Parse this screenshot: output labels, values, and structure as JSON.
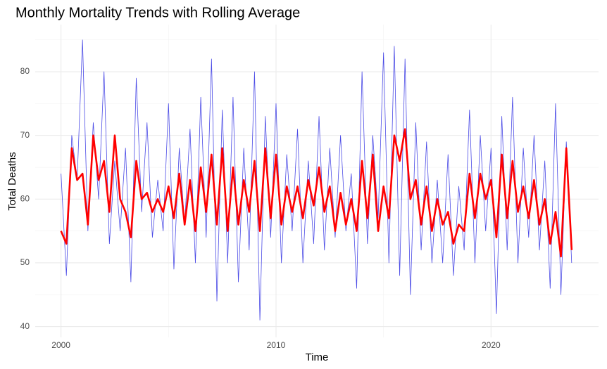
{
  "chart_data": {
    "type": "line",
    "title": "Monthly Mortality Trends with Rolling Average",
    "xlabel": "Time",
    "ylabel": "Total Deaths",
    "x": [
      2000,
      2000.25,
      2000.5,
      2000.75,
      2001,
      2001.25,
      2001.5,
      2001.75,
      2002,
      2002.25,
      2002.5,
      2002.75,
      2003,
      2003.25,
      2003.5,
      2003.75,
      2004,
      2004.25,
      2004.5,
      2004.75,
      2005,
      2005.25,
      2005.5,
      2005.75,
      2006,
      2006.25,
      2006.5,
      2006.75,
      2007,
      2007.25,
      2007.5,
      2007.75,
      2008,
      2008.25,
      2008.5,
      2008.75,
      2009,
      2009.25,
      2009.5,
      2009.75,
      2010,
      2010.25,
      2010.5,
      2010.75,
      2011,
      2011.25,
      2011.5,
      2011.75,
      2012,
      2012.25,
      2012.5,
      2012.75,
      2013,
      2013.25,
      2013.5,
      2013.75,
      2014,
      2014.25,
      2014.5,
      2014.75,
      2015,
      2015.25,
      2015.5,
      2015.75,
      2016,
      2016.25,
      2016.5,
      2016.75,
      2017,
      2017.25,
      2017.5,
      2017.75,
      2018,
      2018.25,
      2018.5,
      2018.75,
      2019,
      2019.25,
      2019.5,
      2019.75,
      2020,
      2020.25,
      2020.5,
      2020.75,
      2021,
      2021.25,
      2021.5,
      2021.75,
      2022,
      2022.25,
      2022.5,
      2022.75,
      2023,
      2023.25,
      2023.5,
      2023.75
    ],
    "series": [
      {
        "color": "#4a4ae6",
        "width": 0.8,
        "values": [
          64,
          48,
          70,
          63,
          85,
          55,
          72,
          60,
          80,
          53,
          66,
          55,
          68,
          47,
          79,
          58,
          72,
          54,
          63,
          55,
          75,
          49,
          68,
          56,
          71,
          50,
          76,
          54,
          82,
          44,
          74,
          50,
          76,
          47,
          68,
          52,
          80,
          41,
          73,
          54,
          75,
          50,
          67,
          55,
          71,
          50,
          66,
          53,
          73,
          52,
          68,
          54,
          70,
          55,
          64,
          46,
          80,
          53,
          70,
          57,
          83,
          50,
          84,
          48,
          82,
          45,
          72,
          52,
          69,
          50,
          63,
          50,
          67,
          48,
          62,
          52,
          74,
          50,
          70,
          55,
          68,
          42,
          73,
          52,
          76,
          50,
          68,
          54,
          70,
          52,
          66,
          46,
          75,
          45,
          69,
          50
        ]
      },
      {
        "color": "#ff0000",
        "width": 2.6,
        "values": [
          55,
          53,
          68,
          63,
          64,
          56,
          70,
          63,
          66,
          58,
          70,
          60,
          58,
          54,
          66,
          60,
          61,
          58,
          60,
          58,
          62,
          57,
          64,
          56,
          63,
          55,
          65,
          58,
          67,
          56,
          68,
          55,
          65,
          56,
          63,
          58,
          66,
          55,
          68,
          57,
          67,
          56,
          62,
          58,
          62,
          57,
          63,
          59,
          65,
          58,
          62,
          55,
          61,
          56,
          60,
          55,
          66,
          57,
          67,
          55,
          62,
          57,
          70,
          66,
          71,
          60,
          63,
          56,
          62,
          55,
          60,
          56,
          58,
          53,
          56,
          55,
          64,
          57,
          64,
          60,
          63,
          54,
          67,
          57,
          66,
          58,
          62,
          57,
          63,
          56,
          60,
          53,
          58,
          51,
          68,
          52
        ]
      }
    ],
    "xlim": [
      1998.8,
      2025.0
    ],
    "ylim": [
      38.3,
      87.4
    ],
    "xticks": [
      2000,
      2010,
      2020
    ],
    "yticks": [
      40,
      50,
      60,
      70,
      80
    ],
    "xminor": [
      2005,
      2015
    ],
    "yminor": [
      45,
      55,
      65,
      75,
      85
    ],
    "grid": true
  }
}
